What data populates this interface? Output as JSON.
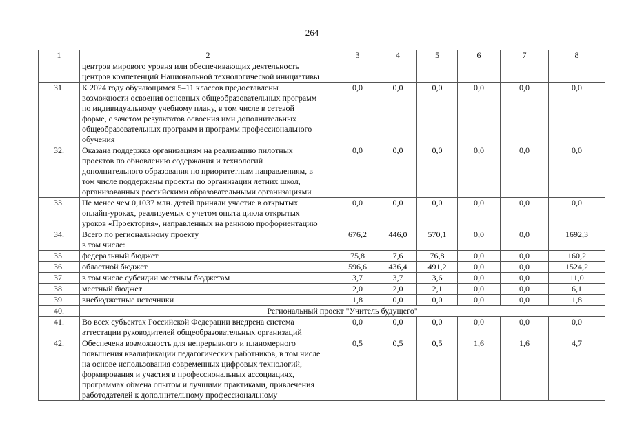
{
  "page_number": "264",
  "header": [
    "1",
    "2",
    "3",
    "4",
    "5",
    "6",
    "7",
    "8"
  ],
  "rows": [
    {
      "num": "",
      "text": [
        "центров мирового уровня или обеспечивающих деятельность",
        "центров компетенций Национальной технологической инициативы"
      ],
      "values": [
        "",
        "",
        "",
        "",
        "",
        ""
      ]
    },
    {
      "num": "31.",
      "text": [
        "К 2024 году обучающимся 5–11 классов предоставлены",
        "возможности освоения основных общеобразовательных программ",
        "по индивидуальному учебному плану, в том числе в сетевой",
        "форме, с зачетом результатов освоения ими дополнительных",
        "общеобразовательных программ и программ профессионального",
        "обучения"
      ],
      "values": [
        "0,0",
        "0,0",
        "0,0",
        "0,0",
        "0,0",
        "0,0"
      ]
    },
    {
      "num": "32.",
      "text": [
        "Оказана поддержка организациям на реализацию пилотных",
        "проектов по обновлению содержания и технологий",
        "дополнительного образования по приоритетным направлениям, в",
        "том числе поддержаны проекты по организации летних школ,",
        "организованных российскими образовательными организациями"
      ],
      "values": [
        "0,0",
        "0,0",
        "0,0",
        "0,0",
        "0,0",
        "0,0"
      ]
    },
    {
      "num": "33.",
      "text": [
        "Не менее чем 0,1037 млн. детей приняли участие в открытых",
        "онлайн-уроках, реализуемых с учетом опыта цикла открытых",
        "уроков «Проектория», направленных на раннюю профориентацию"
      ],
      "values": [
        "0,0",
        "0,0",
        "0,0",
        "0,0",
        "0,0",
        "0,0"
      ]
    },
    {
      "num": "34.",
      "text": [
        "Всего по региональному проекту",
        "в том числе:"
      ],
      "values": [
        "676,2",
        "446,0",
        "570,1",
        "0,0",
        "0,0",
        "1692,3"
      ]
    },
    {
      "num": "35.",
      "text": [
        "федеральный бюджет"
      ],
      "values": [
        "75,8",
        "7,6",
        "76,8",
        "0,0",
        "0,0",
        "160,2"
      ]
    },
    {
      "num": "36.",
      "text": [
        "областной бюджет"
      ],
      "values": [
        "596,6",
        "436,4",
        "491,2",
        "0,0",
        "0,0",
        "1524,2"
      ]
    },
    {
      "num": "37.",
      "text": [
        "в том числе субсидии местным бюджетам"
      ],
      "values": [
        "3,7",
        "3,7",
        "3,6",
        "0,0",
        "0,0",
        "11,0"
      ]
    },
    {
      "num": "38.",
      "text": [
        "местный бюджет"
      ],
      "values": [
        "2,0",
        "2,0",
        "2,1",
        "0,0",
        "0,0",
        "6,1"
      ]
    },
    {
      "num": "39.",
      "text": [
        "внебюджетные источники"
      ],
      "values": [
        "1,8",
        "0,0",
        "0,0",
        "0,0",
        "0,0",
        "1,8"
      ]
    },
    {
      "num": "40.",
      "section": "Региональный проект \"Учитель будущего\""
    },
    {
      "num": "41.",
      "text": [
        "Во всех субъектах Российской Федерации внедрена система",
        "аттестации руководителей общеобразовательных организаций"
      ],
      "values": [
        "0,0",
        "0,0",
        "0,0",
        "0,0",
        "0,0",
        "0,0"
      ]
    },
    {
      "num": "42.",
      "text": [
        "Обеспечена возможность для непрерывного и планомерного",
        "повышения квалификации педагогических работников, в том числе",
        "на основе использования современных цифровых технологий,",
        "формирования и участия в профессиональных ассоциациях,",
        "программах обмена опытом и лучшими практиками, привлечения",
        "работодателей к дополнительному профессиональному"
      ],
      "values": [
        "0,5",
        "0,5",
        "0,5",
        "1,6",
        "1,6",
        "4,7"
      ]
    }
  ]
}
